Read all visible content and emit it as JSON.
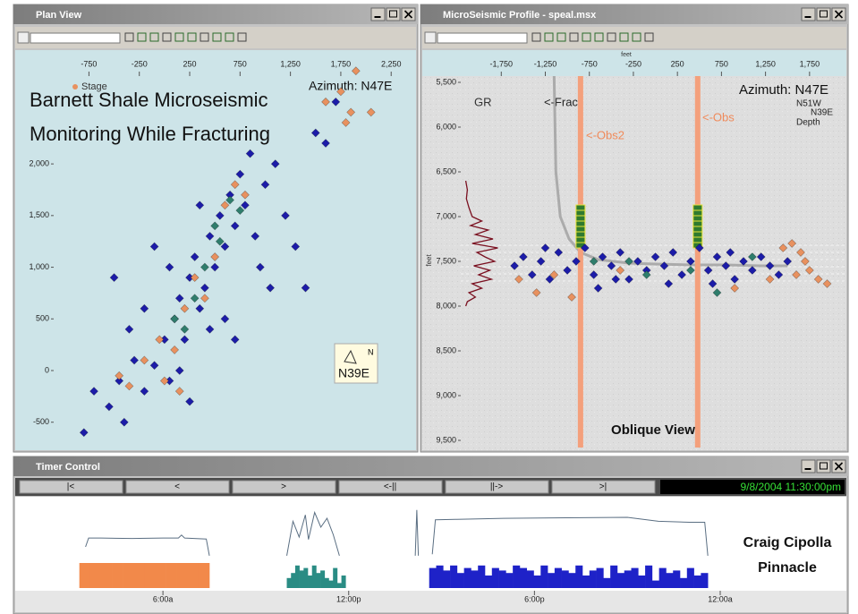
{
  "plan_view": {
    "window_title": "Plan View",
    "overlay_title": [
      "Barnett Shale Microseismic",
      "Monitoring While Fracturing"
    ],
    "azimuth": "Azimuth: N47E",
    "compass_n": "N",
    "compass_label": "N39E",
    "xlim": [
      -1100,
      2470
    ],
    "ylim": [
      -745,
      2850
    ],
    "xticks": [
      -750,
      -250,
      250,
      750,
      {
        "value": 1250,
        "label": "1,250"
      },
      {
        "value": 1750,
        "label": "1,750"
      },
      {
        "value": 2250,
        "label": "2,250"
      }
    ],
    "yticks": [
      -500,
      0,
      500,
      {
        "value": 1000,
        "label": "1,000"
      },
      {
        "value": 1500,
        "label": "1,500"
      },
      {
        "value": 2000,
        "label": "2,000"
      }
    ],
    "series": [
      {
        "color": "#1c1ca8",
        "x": [
          -700,
          -550,
          -400,
          -450,
          -300,
          -200,
          -100,
          0,
          50,
          100,
          150,
          200,
          250,
          300,
          350,
          400,
          450,
          500,
          550,
          600,
          650,
          700,
          750,
          800,
          850,
          900,
          950,
          1000,
          -200,
          -350,
          1100,
          1200,
          1300,
          1400,
          600,
          700,
          -500,
          -800,
          1500,
          1700,
          50,
          350,
          -100,
          1050,
          250,
          150,
          1600,
          450
        ],
        "y": [
          -200,
          -350,
          -500,
          -100,
          100,
          -200,
          50,
          300,
          -100,
          500,
          700,
          300,
          900,
          1100,
          600,
          800,
          1300,
          1000,
          1500,
          1200,
          1700,
          1400,
          1900,
          1600,
          2100,
          1300,
          1000,
          1800,
          600,
          400,
          2000,
          1500,
          1200,
          800,
          500,
          300,
          900,
          -600,
          2300,
          2600,
          1000,
          1600,
          1200,
          800,
          -300,
          0,
          2200,
          400
        ]
      },
      {
        "name": "Stage",
        "color": "#e8915f",
        "x": [
          -450,
          -350,
          -200,
          -50,
          100,
          200,
          300,
          400,
          500,
          600,
          700,
          800,
          1600,
          1750,
          1800,
          1850,
          1900,
          2050,
          150,
          0
        ],
        "y": [
          -50,
          -150,
          100,
          300,
          200,
          600,
          900,
          700,
          1100,
          1600,
          1800,
          1700,
          2600,
          2700,
          2400,
          2500,
          2900,
          2500,
          -200,
          -100
        ]
      },
      {
        "color": "#2f7d6c",
        "x": [
          100,
          400,
          500,
          650,
          300,
          750,
          200,
          550
        ],
        "y": [
          500,
          1000,
          1400,
          1650,
          700,
          1550,
          400,
          1250
        ]
      }
    ]
  },
  "profile": {
    "window_title": "MicroSeismic Profile - speal.msx",
    "x_label": "feet",
    "y_label": "feet",
    "azimuth": "Azimuth: N47E",
    "left_dir": "N51W",
    "right_dir": "N39E",
    "depth_label": "Depth",
    "gr_label": "GR",
    "frac_label": "<-Frac",
    "obs2_label": "<-Obs2",
    "obs_label": "<-Obs",
    "view_label": "Oblique View",
    "xlim": [
      -2210,
      2158
    ],
    "ylim": [
      5430,
      9580
    ],
    "y_inverted": true,
    "xticks": [
      {
        "value": -1750,
        "label": "-1,750"
      },
      {
        "value": -1250,
        "label": "-1,250"
      },
      -750,
      -250,
      250,
      750,
      {
        "value": 1250,
        "label": "1,250"
      },
      {
        "value": 1750,
        "label": "1,750"
      }
    ],
    "yticks": [
      {
        "value": 5500,
        "label": "5,500"
      },
      {
        "value": 6000,
        "label": "6,000"
      },
      {
        "value": 6500,
        "label": "6,500"
      },
      {
        "value": 7000,
        "label": "7,000"
      },
      {
        "value": 7500,
        "label": "7,500"
      },
      {
        "value": 8000,
        "label": "8,000"
      },
      {
        "value": 8500,
        "label": "8,500"
      },
      {
        "value": 9000,
        "label": "9,000"
      },
      {
        "value": 9500,
        "label": "9,500"
      }
    ],
    "obs_wells": [
      -850,
      480
    ],
    "well_color": "#f4a07c",
    "geophone_depths": [
      6900,
      6960,
      7020,
      7080,
      7140,
      7200,
      7260,
      7320
    ],
    "frac_line": {
      "x": [
        -1150,
        -1130,
        -1080,
        -980,
        -850,
        -650,
        -300,
        0,
        400,
        800,
        1200,
        1500
      ],
      "y": [
        5430,
        6500,
        7000,
        7250,
        7400,
        7480,
        7520,
        7530,
        7540,
        7540,
        7550,
        7550
      ]
    },
    "gr": {
      "depths": [
        6600,
        6700,
        6800,
        6900,
        7000,
        7050,
        7100,
        7150,
        7200,
        7250,
        7300,
        7350,
        7400,
        7450,
        7500,
        7550,
        7600,
        7650,
        7700,
        7750,
        7800,
        7850,
        7900,
        7950,
        8000
      ],
      "values": [
        10,
        15,
        12,
        20,
        30,
        60,
        25,
        80,
        40,
        95,
        30,
        110,
        45,
        70,
        100,
        35,
        85,
        50,
        90,
        30,
        60,
        20,
        40,
        15,
        10
      ],
      "color": "#7a1020"
    },
    "series": [
      {
        "color": "#1c1ca8",
        "x": [
          -1600,
          -1500,
          -1400,
          -1300,
          -1200,
          -1100,
          -1000,
          -900,
          -800,
          -700,
          -600,
          -500,
          -400,
          -300,
          -200,
          -100,
          0,
          100,
          200,
          300,
          400,
          500,
          600,
          700,
          800,
          900,
          1000,
          1100,
          1200,
          1300,
          1400,
          1500,
          -650,
          150,
          -1250,
          850,
          -450,
          650
        ],
        "y": [
          7550,
          7450,
          7650,
          7500,
          7700,
          7400,
          7600,
          7500,
          7350,
          7650,
          7450,
          7550,
          7400,
          7700,
          7500,
          7600,
          7450,
          7550,
          7400,
          7650,
          7500,
          7350,
          7600,
          7450,
          7550,
          7700,
          7500,
          7600,
          7450,
          7550,
          7650,
          7500,
          7800,
          7750,
          7350,
          7400,
          7700,
          7750
        ]
      },
      {
        "color": "#e8915f",
        "x": [
          -1550,
          -1350,
          -1150,
          -950,
          -400,
          900,
          1300,
          1450,
          1550,
          1650,
          1700,
          1750,
          1850,
          1950,
          1600
        ],
        "y": [
          7700,
          7850,
          7650,
          7900,
          7600,
          7800,
          7700,
          7350,
          7300,
          7400,
          7500,
          7600,
          7700,
          7750,
          7650
        ]
      },
      {
        "color": "#2f7d6c",
        "x": [
          -700,
          -100,
          400,
          700,
          -300,
          1100
        ],
        "y": [
          7500,
          7650,
          7600,
          7850,
          7500,
          7450
        ]
      }
    ]
  },
  "timer": {
    "window_title": "Timer Control",
    "buttons": [
      "|<",
      "<",
      ">",
      "<-||",
      "||->",
      ">|"
    ],
    "timestamp": "9/8/2004 11:30:00pm",
    "credit": [
      "Craig Cipolla",
      "Pinnacle"
    ],
    "xlim": [
      2.5,
      24
    ],
    "xticks": [
      {
        "value": 6,
        "label": "6:00a"
      },
      {
        "value": 12,
        "label": "12:00p"
      },
      {
        "value": 18,
        "label": "6:00p"
      },
      {
        "value": 24,
        "label": "12:00a"
      }
    ],
    "trace_ylim": [
      0,
      100
    ],
    "count_ylim": [
      0,
      10
    ],
    "pressure": {
      "color": "#5a6e82",
      "x": [
        3.5,
        3.6,
        4.0,
        5.0,
        6.0,
        6.5,
        6.6,
        6.7,
        7.4,
        7.5,
        8.5,
        10.0,
        10.2,
        10.4,
        10.6,
        10.7,
        10.9,
        11.1,
        11.3,
        11.5,
        11.7,
        13.0,
        14.15,
        14.2,
        14.25,
        14.5,
        14.7,
        14.8,
        15.5,
        17,
        19,
        21,
        22,
        23,
        23.5,
        23.6
      ],
      "values": [
        20,
        38,
        38,
        37,
        38,
        38,
        44,
        38,
        36,
        2,
        null,
        2,
        72,
        40,
        85,
        35,
        90,
        60,
        78,
        45,
        2,
        null,
        2,
        95,
        2,
        null,
        5,
        75,
        76,
        78,
        79,
        80,
        72,
        70,
        70,
        2
      ]
    },
    "stages": [
      {
        "color": "#f2894a",
        "start": 3.3,
        "end": 7.5,
        "counts": [
          10,
          10,
          10,
          10,
          10,
          10,
          10,
          10,
          10,
          10,
          10,
          10
        ]
      },
      {
        "color": "#2a8c84",
        "start": 10.0,
        "end": 11.9,
        "counts": [
          4,
          6,
          9,
          7,
          8,
          5,
          9,
          6,
          7,
          4,
          3,
          8,
          2,
          5
        ]
      },
      {
        "color": "#1e22c8",
        "start": 14.6,
        "end": 23.6,
        "counts": [
          8,
          9,
          7,
          9,
          6,
          8,
          7,
          9,
          5,
          8,
          7,
          6,
          9,
          8,
          7,
          5,
          9,
          6,
          8,
          7,
          6,
          9,
          5,
          7,
          8,
          4,
          9,
          6,
          7,
          8,
          5,
          9,
          3,
          8,
          6,
          7,
          4,
          8,
          5,
          6
        ]
      }
    ]
  }
}
